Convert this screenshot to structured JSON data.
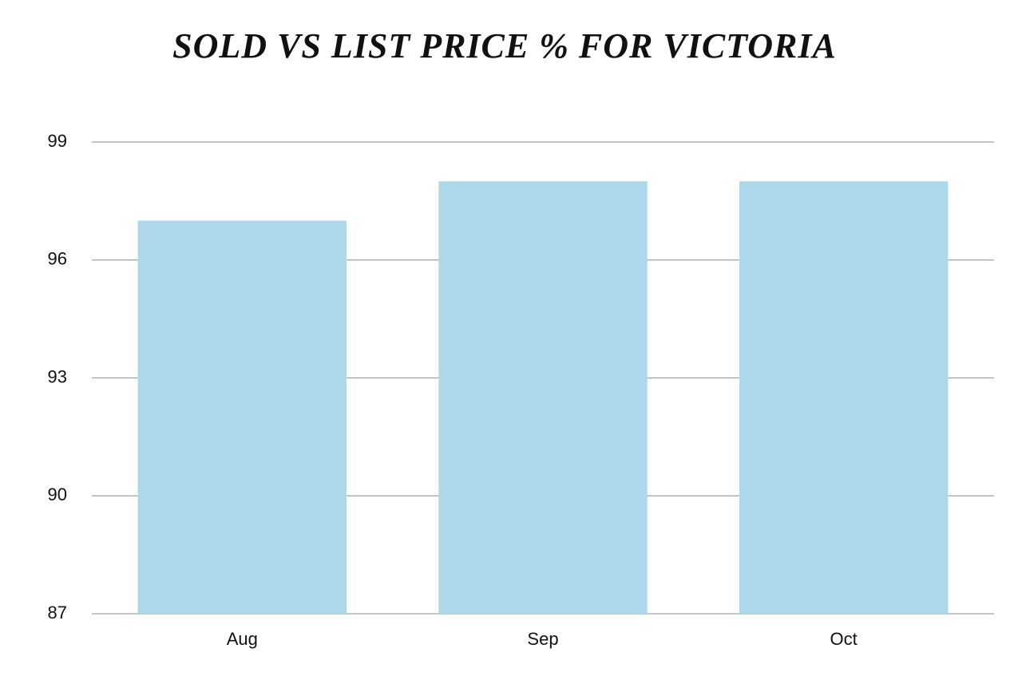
{
  "chart_data": {
    "type": "bar",
    "title": "SOLD VS LIST PRICE % FOR VICTORIA",
    "categories": [
      "Aug",
      "Sep",
      "Oct"
    ],
    "values": [
      97,
      98,
      98
    ],
    "color": "#add8eb",
    "ylim": [
      87,
      99
    ],
    "yticks": [
      87,
      90,
      93,
      96,
      99
    ],
    "grid": true
  }
}
